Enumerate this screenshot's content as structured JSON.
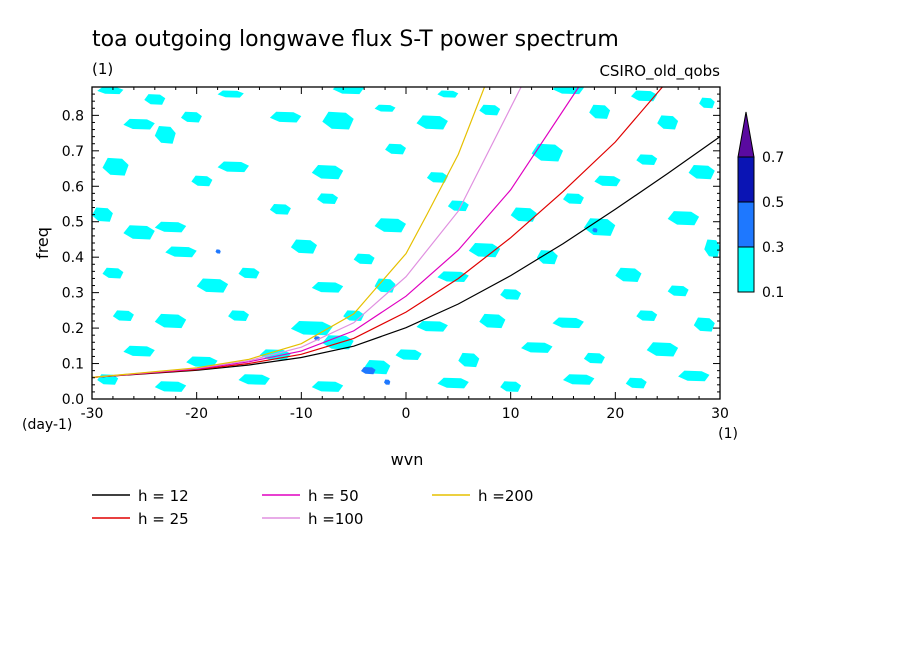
{
  "chart_data": {
    "type": "contour",
    "title": "toa outgoing longwave flux S-T power spectrum",
    "title_unit": "(1)",
    "subtitle_right": "CSIRO_old_qobs",
    "xlabel": "wvn",
    "ylabel": "freq",
    "x_unit": "(1)",
    "y_unit": "(day-1)",
    "xlim": [
      -30,
      30
    ],
    "ylim": [
      0,
      0.88
    ],
    "x_ticks": [
      -30,
      -20,
      -10,
      0,
      10,
      20,
      30
    ],
    "x_tick_labels": [
      "-30",
      "-20",
      "-10",
      "0",
      "10",
      "20",
      "30"
    ],
    "y_ticks": [
      0,
      0.1,
      0.2,
      0.3,
      0.4,
      0.5,
      0.6,
      0.7,
      0.8
    ],
    "y_tick_labels": [
      "0.0",
      "0.1",
      "0.2",
      "0.3",
      "0.4",
      "0.5",
      "0.6",
      "0.7",
      "0.8"
    ],
    "colorbar": {
      "levels": [
        0.1,
        0.3,
        0.5,
        0.7
      ],
      "labels": [
        "0.1",
        "0.3",
        "0.5",
        "0.7"
      ],
      "colors": [
        "#00ffff",
        "#1e78ff",
        "#0a14b4",
        "#5a0aa0"
      ],
      "extend": "max"
    },
    "contour_patches": [
      {
        "x": -29.5,
        "y": 0.86,
        "w": 2.5,
        "h": 0.02,
        "level": 0.1
      },
      {
        "x": -25,
        "y": 0.83,
        "w": 2,
        "h": 0.03,
        "level": 0.1
      },
      {
        "x": -18,
        "y": 0.85,
        "w": 2.5,
        "h": 0.02,
        "level": 0.1
      },
      {
        "x": -7,
        "y": 0.86,
        "w": 3,
        "h": 0.03,
        "level": 0.1
      },
      {
        "x": 3,
        "y": 0.85,
        "w": 2,
        "h": 0.02,
        "level": 0.1
      },
      {
        "x": 14,
        "y": 0.86,
        "w": 3,
        "h": 0.03,
        "level": 0.1
      },
      {
        "x": 21.5,
        "y": 0.84,
        "w": 2.5,
        "h": 0.03,
        "level": 0.1
      },
      {
        "x": -27,
        "y": 0.76,
        "w": 3,
        "h": 0.03,
        "level": 0.1
      },
      {
        "x": -24,
        "y": 0.72,
        "w": 2,
        "h": 0.05,
        "level": 0.1
      },
      {
        "x": -21.5,
        "y": 0.78,
        "w": 2,
        "h": 0.03,
        "level": 0.1
      },
      {
        "x": -13,
        "y": 0.78,
        "w": 3,
        "h": 0.03,
        "level": 0.1
      },
      {
        "x": -8,
        "y": 0.76,
        "w": 3,
        "h": 0.05,
        "level": 0.1
      },
      {
        "x": -3,
        "y": 0.81,
        "w": 2,
        "h": 0.02,
        "level": 0.1
      },
      {
        "x": 1,
        "y": 0.76,
        "w": 3,
        "h": 0.04,
        "level": 0.1
      },
      {
        "x": 7,
        "y": 0.8,
        "w": 2,
        "h": 0.03,
        "level": 0.1
      },
      {
        "x": 17.5,
        "y": 0.79,
        "w": 2,
        "h": 0.04,
        "level": 0.1
      },
      {
        "x": 24,
        "y": 0.76,
        "w": 2,
        "h": 0.04,
        "level": 0.1
      },
      {
        "x": 28,
        "y": 0.82,
        "w": 1.5,
        "h": 0.03,
        "level": 0.1
      },
      {
        "x": -29,
        "y": 0.63,
        "w": 2.5,
        "h": 0.05,
        "level": 0.1
      },
      {
        "x": -20.5,
        "y": 0.6,
        "w": 2,
        "h": 0.03,
        "level": 0.1
      },
      {
        "x": -18,
        "y": 0.64,
        "w": 3,
        "h": 0.03,
        "level": 0.1
      },
      {
        "x": -9,
        "y": 0.62,
        "w": 3,
        "h": 0.04,
        "level": 0.1
      },
      {
        "x": -2,
        "y": 0.69,
        "w": 2,
        "h": 0.03,
        "level": 0.1
      },
      {
        "x": 2,
        "y": 0.61,
        "w": 2,
        "h": 0.03,
        "level": 0.1
      },
      {
        "x": 12,
        "y": 0.67,
        "w": 3,
        "h": 0.05,
        "level": 0.1
      },
      {
        "x": 18,
        "y": 0.6,
        "w": 2.5,
        "h": 0.03,
        "level": 0.1
      },
      {
        "x": 22,
        "y": 0.66,
        "w": 2,
        "h": 0.03,
        "level": 0.1
      },
      {
        "x": 27,
        "y": 0.62,
        "w": 2.5,
        "h": 0.04,
        "level": 0.1
      },
      {
        "x": -30,
        "y": 0.5,
        "w": 2,
        "h": 0.04,
        "level": 0.1
      },
      {
        "x": -24,
        "y": 0.47,
        "w": 3,
        "h": 0.03,
        "level": 0.1
      },
      {
        "x": -13,
        "y": 0.52,
        "w": 2,
        "h": 0.03,
        "level": 0.1
      },
      {
        "x": -8.5,
        "y": 0.55,
        "w": 2,
        "h": 0.03,
        "level": 0.1
      },
      {
        "x": -3,
        "y": 0.47,
        "w": 3,
        "h": 0.04,
        "level": 0.1
      },
      {
        "x": 4,
        "y": 0.53,
        "w": 2,
        "h": 0.03,
        "level": 0.1
      },
      {
        "x": 10,
        "y": 0.5,
        "w": 2.5,
        "h": 0.04,
        "level": 0.1
      },
      {
        "x": 15,
        "y": 0.55,
        "w": 2,
        "h": 0.03,
        "level": 0.1
      },
      {
        "x": 25,
        "y": 0.49,
        "w": 3,
        "h": 0.04,
        "level": 0.1
      },
      {
        "x": -27,
        "y": 0.45,
        "w": 3,
        "h": 0.04,
        "level": 0.1
      },
      {
        "x": -23,
        "y": 0.4,
        "w": 3,
        "h": 0.03,
        "level": 0.1
      },
      {
        "x": -11,
        "y": 0.41,
        "w": 2.5,
        "h": 0.04,
        "level": 0.1
      },
      {
        "x": -5,
        "y": 0.38,
        "w": 2,
        "h": 0.03,
        "level": 0.1
      },
      {
        "x": 6,
        "y": 0.4,
        "w": 3,
        "h": 0.04,
        "level": 0.1
      },
      {
        "x": 12.5,
        "y": 0.38,
        "w": 2,
        "h": 0.04,
        "level": 0.1
      },
      {
        "x": 17,
        "y": 0.46,
        "w": 3,
        "h": 0.05,
        "level": 0.1
      },
      {
        "x": 28.5,
        "y": 0.4,
        "w": 1.5,
        "h": 0.05,
        "level": 0.1
      },
      {
        "x": -29,
        "y": 0.34,
        "w": 2,
        "h": 0.03,
        "level": 0.1
      },
      {
        "x": -20,
        "y": 0.3,
        "w": 3,
        "h": 0.04,
        "level": 0.1
      },
      {
        "x": -16,
        "y": 0.34,
        "w": 2,
        "h": 0.03,
        "level": 0.1
      },
      {
        "x": -9,
        "y": 0.3,
        "w": 3,
        "h": 0.03,
        "level": 0.1
      },
      {
        "x": -3,
        "y": 0.3,
        "w": 2,
        "h": 0.04,
        "level": 0.1
      },
      {
        "x": 3,
        "y": 0.33,
        "w": 3,
        "h": 0.03,
        "level": 0.1
      },
      {
        "x": 9,
        "y": 0.28,
        "w": 2,
        "h": 0.03,
        "level": 0.1
      },
      {
        "x": 20,
        "y": 0.33,
        "w": 2.5,
        "h": 0.04,
        "level": 0.1
      },
      {
        "x": 25,
        "y": 0.29,
        "w": 2,
        "h": 0.03,
        "level": 0.1
      },
      {
        "x": -28,
        "y": 0.22,
        "w": 2,
        "h": 0.03,
        "level": 0.1
      },
      {
        "x": -24,
        "y": 0.2,
        "w": 3,
        "h": 0.04,
        "level": 0.1
      },
      {
        "x": -17,
        "y": 0.22,
        "w": 2,
        "h": 0.03,
        "level": 0.1
      },
      {
        "x": -11,
        "y": 0.18,
        "w": 4,
        "h": 0.04,
        "level": 0.1
      },
      {
        "x": -6,
        "y": 0.22,
        "w": 2,
        "h": 0.03,
        "level": 0.1
      },
      {
        "x": 1,
        "y": 0.19,
        "w": 3,
        "h": 0.03,
        "level": 0.1
      },
      {
        "x": 7,
        "y": 0.2,
        "w": 2.5,
        "h": 0.04,
        "level": 0.1
      },
      {
        "x": 14,
        "y": 0.2,
        "w": 3,
        "h": 0.03,
        "level": 0.1
      },
      {
        "x": 22,
        "y": 0.22,
        "w": 2,
        "h": 0.03,
        "level": 0.1
      },
      {
        "x": 27.5,
        "y": 0.19,
        "w": 2,
        "h": 0.04,
        "level": 0.1
      },
      {
        "x": -27,
        "y": 0.12,
        "w": 3,
        "h": 0.03,
        "level": 0.1
      },
      {
        "x": -21,
        "y": 0.09,
        "w": 3,
        "h": 0.03,
        "level": 0.1
      },
      {
        "x": -14,
        "y": 0.11,
        "w": 3,
        "h": 0.03,
        "level": 0.1
      },
      {
        "x": -8,
        "y": 0.14,
        "w": 3,
        "h": 0.04,
        "level": 0.1
      },
      {
        "x": -1,
        "y": 0.11,
        "w": 2.5,
        "h": 0.03,
        "level": 0.1
      },
      {
        "x": 5,
        "y": 0.09,
        "w": 2,
        "h": 0.04,
        "level": 0.1
      },
      {
        "x": 11,
        "y": 0.13,
        "w": 3,
        "h": 0.03,
        "level": 0.1
      },
      {
        "x": 17,
        "y": 0.1,
        "w": 2,
        "h": 0.03,
        "level": 0.1
      },
      {
        "x": 23,
        "y": 0.12,
        "w": 3,
        "h": 0.04,
        "level": 0.1
      },
      {
        "x": -29.5,
        "y": 0.04,
        "w": 2,
        "h": 0.03,
        "level": 0.1
      },
      {
        "x": -24,
        "y": 0.02,
        "w": 3,
        "h": 0.03,
        "level": 0.1
      },
      {
        "x": -16,
        "y": 0.04,
        "w": 3,
        "h": 0.03,
        "level": 0.1
      },
      {
        "x": -9,
        "y": 0.02,
        "w": 3,
        "h": 0.03,
        "level": 0.1
      },
      {
        "x": -4,
        "y": 0.07,
        "w": 2.5,
        "h": 0.04,
        "level": 0.1
      },
      {
        "x": 3,
        "y": 0.03,
        "w": 3,
        "h": 0.03,
        "level": 0.1
      },
      {
        "x": 9,
        "y": 0.02,
        "w": 2,
        "h": 0.03,
        "level": 0.1
      },
      {
        "x": 15,
        "y": 0.04,
        "w": 3,
        "h": 0.03,
        "level": 0.1
      },
      {
        "x": 21,
        "y": 0.03,
        "w": 2,
        "h": 0.03,
        "level": 0.1
      },
      {
        "x": 26,
        "y": 0.05,
        "w": 3,
        "h": 0.03,
        "level": 0.1
      },
      {
        "x": -4.3,
        "y": 0.07,
        "w": 1.4,
        "h": 0.02,
        "level": 0.3
      },
      {
        "x": -2.1,
        "y": 0.04,
        "w": 0.6,
        "h": 0.015,
        "level": 0.3
      },
      {
        "x": -18.2,
        "y": 0.41,
        "w": 0.5,
        "h": 0.012,
        "level": 0.3
      },
      {
        "x": 17.8,
        "y": 0.47,
        "w": 0.5,
        "h": 0.012,
        "level": 0.3
      },
      {
        "x": -8.8,
        "y": 0.165,
        "w": 0.6,
        "h": 0.012,
        "level": 0.3
      }
    ],
    "series": [
      {
        "name": "h = 12",
        "color": "#000000",
        "x": [
          -30,
          -20,
          -15,
          -10,
          -5,
          0,
          5,
          10,
          15,
          20,
          25,
          30
        ],
        "y": [
          0.061,
          0.081,
          0.096,
          0.117,
          0.149,
          0.201,
          0.268,
          0.348,
          0.438,
          0.535,
          0.636,
          0.74
        ]
      },
      {
        "name": "h = 25",
        "color": "#e00000",
        "x": [
          -30,
          -20,
          -15,
          -10,
          -5,
          0,
          5,
          10,
          15,
          20,
          24.5
        ],
        "y": [
          0.061,
          0.083,
          0.1,
          0.126,
          0.171,
          0.245,
          0.34,
          0.455,
          0.585,
          0.725,
          0.88
        ]
      },
      {
        "name": "h = 50",
        "color": "#e000c0",
        "x": [
          -30,
          -20,
          -15,
          -10,
          -5,
          0,
          5,
          10,
          16.5
        ],
        "y": [
          0.061,
          0.085,
          0.105,
          0.135,
          0.192,
          0.29,
          0.42,
          0.59,
          0.88
        ]
      },
      {
        "name": "h =100",
        "color": "#e090e0",
        "x": [
          -30,
          -20,
          -15,
          -10,
          -5,
          0,
          5,
          11
        ],
        "y": [
          0.061,
          0.087,
          0.108,
          0.146,
          0.215,
          0.345,
          0.53,
          0.88
        ]
      },
      {
        "name": "h =200",
        "color": "#e6c000",
        "x": [
          -30,
          -20,
          -15,
          -10,
          -5,
          0,
          2,
          5,
          7.5
        ],
        "y": [
          0.061,
          0.088,
          0.112,
          0.156,
          0.24,
          0.41,
          0.52,
          0.69,
          0.88
        ]
      }
    ],
    "legend_placement": "bottom-left"
  }
}
